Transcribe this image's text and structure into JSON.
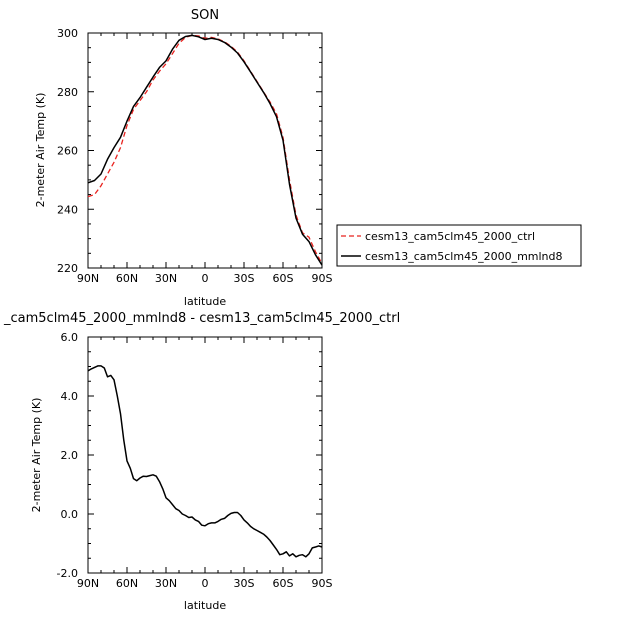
{
  "chart_data": [
    {
      "type": "line",
      "title": "SON",
      "xlabel": "latitude",
      "ylabel": "2-meter Air Temp (K)",
      "xlim": [
        90,
        -90
      ],
      "ylim": [
        220,
        300
      ],
      "x_ticks": [
        90,
        60,
        30,
        0,
        -30,
        -60,
        -90
      ],
      "x_tick_labels": [
        "90N",
        "60N",
        "30N",
        "0",
        "30S",
        "60S",
        "90S"
      ],
      "y_ticks": [
        220,
        240,
        260,
        280,
        300
      ],
      "y_tick_labels": [
        "220",
        "240",
        "260",
        "280",
        "300"
      ],
      "grid": false,
      "legend_position": "right",
      "x": [
        90,
        85,
        80,
        75,
        70,
        65,
        60,
        55,
        50,
        45,
        40,
        35,
        30,
        25,
        20,
        15,
        10,
        5,
        0,
        -5,
        -10,
        -15,
        -20,
        -25,
        -30,
        -35,
        -40,
        -45,
        -50,
        -55,
        -60,
        -65,
        -70,
        -75,
        -80,
        -85,
        -90
      ],
      "series": [
        {
          "name": "cesm13_cam5clm45_2000_ctrl",
          "color": "#e8231f",
          "dash": "dashed",
          "values": [
            244.3,
            245,
            248,
            252,
            256,
            261,
            268.5,
            274,
            277,
            280,
            284,
            287,
            289.5,
            293,
            296.5,
            298.5,
            299.2,
            299,
            298.2,
            298.5,
            298,
            297,
            295.5,
            293.5,
            290.5,
            287,
            283.5,
            280,
            276.5,
            272.5,
            264.5,
            250,
            238,
            232,
            230.5,
            225.5,
            221.5
          ]
        },
        {
          "name": "cesm13_cam5clm45_2000_mmlnd8",
          "color": "#000000",
          "dash": "solid",
          "values": [
            249,
            249.8,
            252,
            257,
            261,
            264.5,
            270,
            275,
            278,
            281.5,
            285,
            288.3,
            290.5,
            294.5,
            297.5,
            298.8,
            299.2,
            298.7,
            297.8,
            298.2,
            297.8,
            296.8,
            295.2,
            293.2,
            290.2,
            286.8,
            283.3,
            279.8,
            276,
            271.5,
            263.5,
            248.5,
            237,
            231.5,
            229,
            224.5,
            221
          ]
        }
      ]
    },
    {
      "type": "line",
      "title": "_cam5clm45_2000_mmlnd8 - cesm13_cam5clm45_2000_ctrl",
      "xlabel": "latitude",
      "ylabel": "2-meter Air Temp (K)",
      "xlim": [
        90,
        -90
      ],
      "ylim": [
        -2.0,
        6.0
      ],
      "x_ticks": [
        90,
        60,
        30,
        0,
        -30,
        -60,
        -90
      ],
      "x_tick_labels": [
        "90N",
        "60N",
        "30N",
        "0",
        "30S",
        "60S",
        "90S"
      ],
      "y_ticks": [
        -2,
        0,
        2,
        4,
        6
      ],
      "y_tick_labels": [
        "-2.0",
        "0.0",
        "2.0",
        "4.0",
        "6.0"
      ],
      "grid": false,
      "x": [
        90,
        87.5,
        85,
        82.5,
        80,
        77.5,
        75,
        72.5,
        70,
        67.5,
        65,
        62.5,
        60,
        57.5,
        55,
        52.5,
        50,
        47.5,
        45,
        42.5,
        40,
        37.5,
        35,
        32.5,
        30,
        27.5,
        25,
        22.5,
        20,
        17.5,
        15,
        12.5,
        10,
        7.5,
        5,
        2.5,
        0,
        -2.5,
        -5,
        -7.5,
        -10,
        -12.5,
        -15,
        -17.5,
        -20,
        -22.5,
        -25,
        -27.5,
        -30,
        -32.5,
        -35,
        -37.5,
        -40,
        -42.5,
        -45,
        -47.5,
        -50,
        -52.5,
        -55,
        -57.5,
        -60,
        -62.5,
        -65,
        -67.5,
        -70,
        -72.5,
        -75,
        -77.5,
        -80,
        -82.5,
        -85,
        -87.5,
        -90
      ],
      "series": [
        {
          "color": "#000000",
          "values": [
            4.85,
            4.92,
            4.97,
            5.02,
            5.02,
            4.95,
            4.65,
            4.7,
            4.55,
            4.0,
            3.4,
            2.5,
            1.8,
            1.55,
            1.2,
            1.13,
            1.22,
            1.28,
            1.27,
            1.3,
            1.33,
            1.28,
            1.1,
            0.85,
            0.55,
            0.45,
            0.32,
            0.18,
            0.12,
            0.0,
            -0.05,
            -0.12,
            -0.1,
            -0.2,
            -0.25,
            -0.38,
            -0.4,
            -0.33,
            -0.3,
            -0.3,
            -0.25,
            -0.18,
            -0.15,
            -0.05,
            0.02,
            0.05,
            0.05,
            -0.05,
            -0.2,
            -0.3,
            -0.42,
            -0.5,
            -0.56,
            -0.62,
            -0.68,
            -0.78,
            -0.9,
            -1.05,
            -1.2,
            -1.38,
            -1.35,
            -1.28,
            -1.42,
            -1.35,
            -1.45,
            -1.4,
            -1.38,
            -1.45,
            -1.35,
            -1.15,
            -1.12,
            -1.08,
            -1.12
          ]
        }
      ]
    }
  ]
}
